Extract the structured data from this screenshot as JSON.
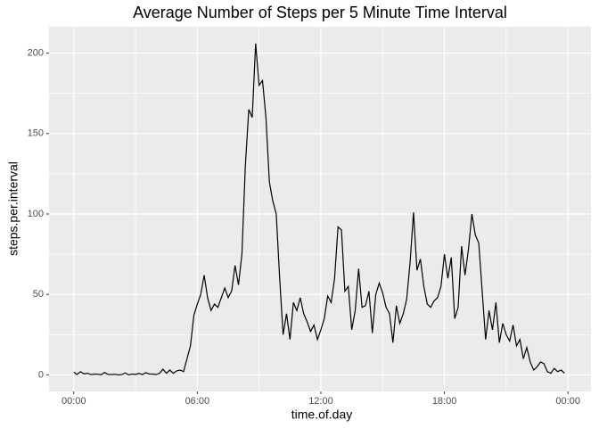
{
  "chart_data": {
    "type": "line",
    "title": "Average Number of Steps per 5 Minute Time Interval",
    "x_label": "time.of.day",
    "y_label": "steps.per.interval",
    "x": [
      0,
      10,
      20,
      30,
      40,
      50,
      60,
      70,
      80,
      90,
      100,
      110,
      120,
      130,
      140,
      150,
      160,
      170,
      180,
      190,
      200,
      210,
      220,
      230,
      240,
      250,
      260,
      270,
      280,
      290,
      300,
      310,
      320,
      330,
      340,
      350,
      360,
      370,
      380,
      390,
      400,
      410,
      420,
      430,
      440,
      450,
      460,
      470,
      480,
      490,
      500,
      510,
      520,
      530,
      540,
      550,
      560,
      570,
      580,
      590,
      600,
      610,
      620,
      630,
      640,
      650,
      660,
      670,
      680,
      690,
      700,
      710,
      720,
      730,
      740,
      750,
      760,
      770,
      780,
      790,
      800,
      810,
      820,
      830,
      840,
      850,
      860,
      870,
      880,
      890,
      900,
      910,
      920,
      930,
      940,
      950,
      960,
      970,
      980,
      990,
      1000,
      1010,
      1020,
      1030,
      1040,
      1050,
      1060,
      1070,
      1080,
      1090,
      1100,
      1110,
      1120,
      1130,
      1140,
      1150,
      1160,
      1170,
      1180,
      1190,
      1200,
      1210,
      1220,
      1230,
      1240,
      1250,
      1260,
      1270,
      1280,
      1290,
      1300,
      1310,
      1320,
      1330,
      1340,
      1350,
      1360,
      1370,
      1380,
      1390,
      1400,
      1410,
      1420,
      1430
    ],
    "series": [
      {
        "name": "steps.per.interval",
        "color": "#000000",
        "values": [
          1.7,
          0.3,
          2,
          0.6,
          1,
          0.2,
          0.5,
          0.4,
          0.1,
          1.5,
          0.3,
          0.2,
          0.4,
          0,
          0.2,
          1.2,
          0,
          0.5,
          0.3,
          0.9,
          0.2,
          1.4,
          0.5,
          0.5,
          0.2,
          1,
          3.5,
          1,
          3,
          1,
          2.5,
          3,
          2,
          10,
          18,
          37,
          44,
          50,
          62,
          48,
          40,
          44,
          42,
          48,
          54,
          48,
          52,
          68,
          56,
          75,
          130,
          165,
          160,
          206,
          180,
          183,
          160,
          120,
          108,
          100,
          60,
          25,
          38,
          22,
          45,
          40,
          48,
          38,
          33,
          27,
          31,
          22,
          28,
          35,
          49,
          45,
          60,
          92,
          90,
          52,
          55,
          28,
          40,
          66,
          42,
          43,
          52,
          26,
          50,
          57,
          51,
          42,
          38,
          20,
          43,
          32,
          38,
          47,
          70,
          101,
          65,
          72,
          55,
          44,
          42,
          46,
          48,
          55,
          75,
          60,
          73,
          35,
          42,
          80,
          62,
          78,
          100,
          87,
          82,
          52,
          22,
          40,
          28,
          45,
          20,
          32,
          25,
          21,
          31,
          18,
          22,
          10,
          17,
          8,
          3,
          5,
          8,
          7,
          2,
          1,
          4,
          2,
          3,
          1
        ]
      }
    ],
    "xlim": [
      -72,
      1507
    ],
    "xticks": [
      {
        "value": 0,
        "label": "00:00"
      },
      {
        "value": 360,
        "label": "06:00"
      },
      {
        "value": 720,
        "label": "12:00"
      },
      {
        "value": 1080,
        "label": "18:00"
      },
      {
        "value": 1440,
        "label": "00:00"
      }
    ],
    "ylim": [
      -10.3,
      216.4
    ],
    "yticks": [
      0,
      50,
      100,
      150,
      200
    ],
    "grid": true
  }
}
